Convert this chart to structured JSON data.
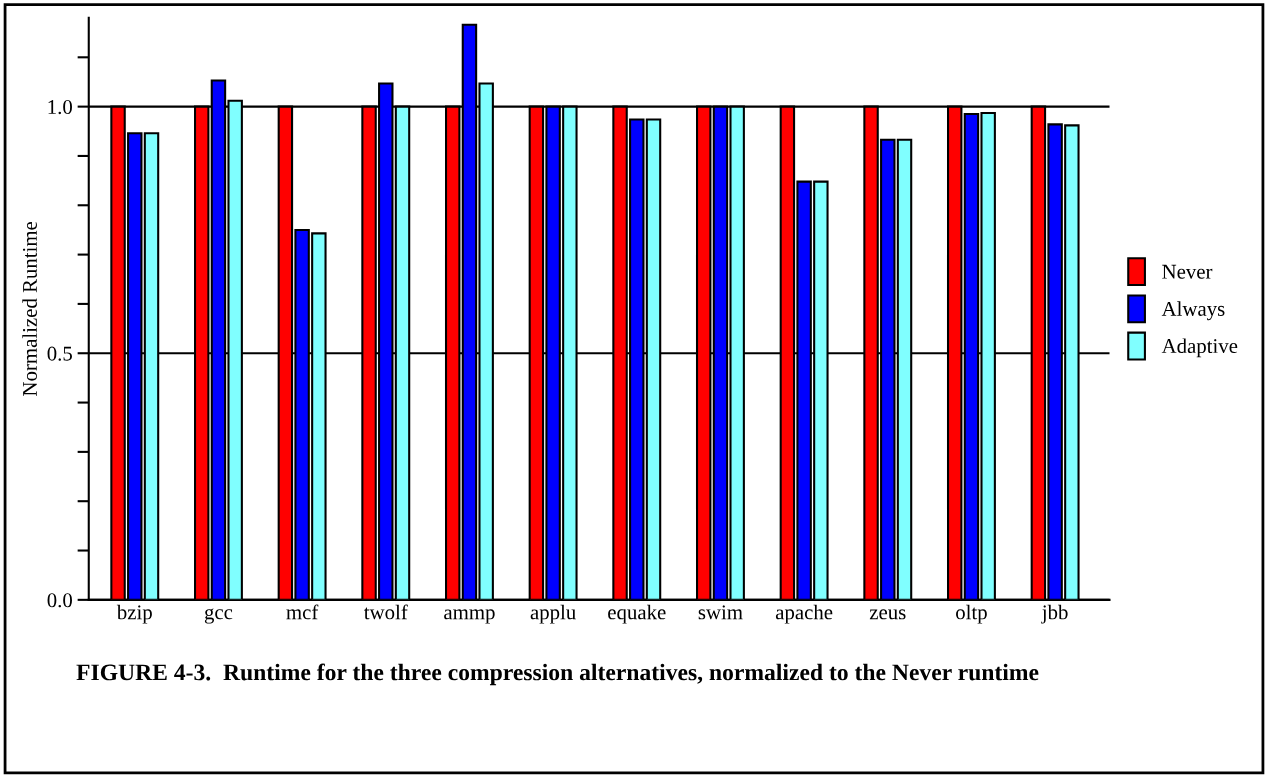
{
  "chart_data": {
    "type": "bar",
    "ylabel": "Normalized Runtime",
    "categories": [
      "bzip",
      "gcc",
      "mcf",
      "twolf",
      "ammp",
      "applu",
      "equake",
      "swim",
      "apache",
      "zeus",
      "oltp",
      "jbb"
    ],
    "series": [
      {
        "name": "Never",
        "color": "#ff0000",
        "values": [
          1.0,
          1.0,
          1.0,
          1.0,
          1.0,
          1.0,
          1.0,
          1.0,
          1.0,
          1.0,
          1.0,
          1.0
        ]
      },
      {
        "name": "Always",
        "color": "#0000ff",
        "values": [
          0.946,
          1.053,
          0.75,
          1.047,
          1.166,
          1.0,
          0.974,
          1.0,
          0.848,
          0.933,
          0.985,
          0.964
        ]
      },
      {
        "name": "Adaptive",
        "color": "#80ffff",
        "values": [
          0.946,
          1.012,
          0.743,
          1.0,
          1.047,
          1.0,
          0.974,
          1.0,
          0.848,
          0.933,
          0.987,
          0.962
        ]
      }
    ],
    "ylim": [
      0,
      1.18
    ],
    "yticks": [
      {
        "value": 0,
        "label": "0.0"
      },
      {
        "value": 0.1,
        "label": null
      },
      {
        "value": 0.2,
        "label": null
      },
      {
        "value": 0.3,
        "label": null
      },
      {
        "value": 0.4,
        "label": null
      },
      {
        "value": 0.5,
        "label": "0.5"
      },
      {
        "value": 0.6,
        "label": null
      },
      {
        "value": 0.7,
        "label": null
      },
      {
        "value": 0.8,
        "label": null
      },
      {
        "value": 0.9,
        "label": null
      },
      {
        "value": 1.0,
        "label": "1.0"
      },
      {
        "value": 1.1,
        "label": null
      }
    ],
    "grid": "y",
    "legend": "right",
    "annotations": [
      "FIGURE 4-3.  Runtime for the three compression alternatives, normalized to the Never runtime"
    ]
  }
}
